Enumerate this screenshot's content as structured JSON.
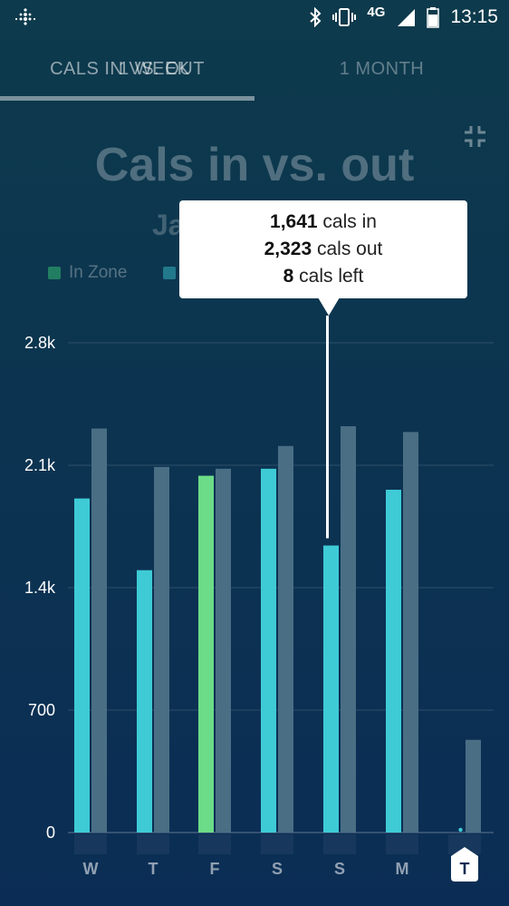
{
  "status_bar": {
    "network": "4G",
    "time": "13:15",
    "icons": [
      "fitbit-logo-icon",
      "bluetooth-icon",
      "vibrate-icon",
      "signal-icon",
      "battery-icon"
    ]
  },
  "tabs": [
    {
      "label": "CALS IN VS. OUT",
      "overlay_label": "1 WEEK",
      "active": true
    },
    {
      "label": "1 MONTH",
      "active": false
    }
  ],
  "header": {
    "title": "Cals in vs. out",
    "subtitle": "Ja"
  },
  "legend": [
    {
      "label": "In Zone",
      "color": "#3fd67a"
    },
    {
      "label": "",
      "color": "#3ecbd6"
    }
  ],
  "tooltip": {
    "line1_value": "1,641",
    "line1_text": " cals in",
    "line2_value": "2,323",
    "line2_text": " cals out",
    "line3_value": "8",
    "line3_text": " cals left"
  },
  "colors": {
    "cals_in": "#3ecbd6",
    "cals_in_zone": "#6cdc89",
    "cals_out": "#4a6e84"
  },
  "chart_data": {
    "type": "bar",
    "categories": [
      "W",
      "T",
      "F",
      "S",
      "S",
      "M",
      "T"
    ],
    "series": [
      {
        "name": "cals in",
        "values": [
          1910,
          1500,
          2040,
          2080,
          1641,
          1960,
          20
        ],
        "in_zone": [
          false,
          false,
          true,
          false,
          false,
          false,
          false
        ]
      },
      {
        "name": "cals out",
        "values": [
          2310,
          2090,
          2080,
          2210,
          2323,
          2290,
          530
        ]
      }
    ],
    "yticks": [
      "2.8k",
      "2.1k",
      "1.4k",
      "700",
      "0"
    ],
    "ytick_values": [
      2800,
      2100,
      1400,
      700,
      0
    ],
    "ylim": [
      0,
      2800
    ],
    "grid": true,
    "selected_index": 4,
    "today_index": 6,
    "title": "",
    "xlabel": "",
    "ylabel": ""
  }
}
